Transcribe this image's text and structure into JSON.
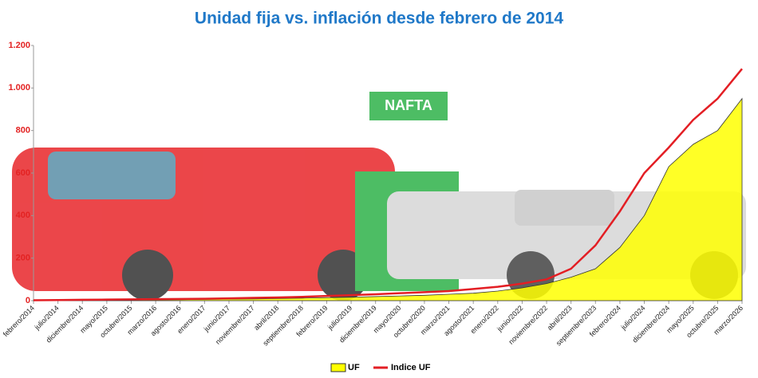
{
  "chart_data": {
    "type": "area_line",
    "title": "Unidad fija vs. inflación desde febrero de 2014",
    "categories": [
      "febrero/2014",
      "julio/2014",
      "diciembre/2014",
      "mayo/2015",
      "octubre/2015",
      "marzo/2016",
      "agosto/2016",
      "enero/2017",
      "junio/2017",
      "noviembre/2017",
      "abril/2018",
      "septiembre/2018",
      "febrero/2019",
      "julio/2019",
      "diciembre/2019",
      "mayo/2020",
      "octubre/2020",
      "marzo/2021",
      "agosto/2021",
      "enero/2022",
      "junio/2022",
      "noviembre/2022",
      "abril/2023",
      "septiembre/2023",
      "febrero/2024",
      "julio/2024",
      "diciembre/2024",
      "mayo/2025",
      "octubre/2025",
      "marzo/2026"
    ],
    "series": [
      {
        "name": "UF",
        "color": "#ffff00",
        "values": [
          1,
          1,
          2,
          2,
          3,
          4,
          5,
          6,
          7,
          8,
          10,
          12,
          14,
          16,
          19,
          22,
          25,
          30,
          35,
          45,
          60,
          80,
          110,
          150,
          250,
          400,
          630,
          735,
          800,
          950
        ]
      },
      {
        "name": "Indice UF",
        "color": "#e31e24",
        "values": [
          2,
          3,
          4,
          5,
          6,
          7,
          8,
          9,
          11,
          13,
          15,
          18,
          22,
          26,
          30,
          35,
          40,
          45,
          55,
          65,
          80,
          100,
          150,
          260,
          420,
          600,
          720,
          850,
          950,
          1090
        ]
      }
    ],
    "ylim": [
      0,
      1200
    ],
    "yticks": [
      0,
      200,
      400,
      600,
      800,
      {
        "value": 1000,
        "label": "1.000"
      },
      {
        "value": 1200,
        "label": "1.200"
      }
    ],
    "legend": "bottom"
  }
}
